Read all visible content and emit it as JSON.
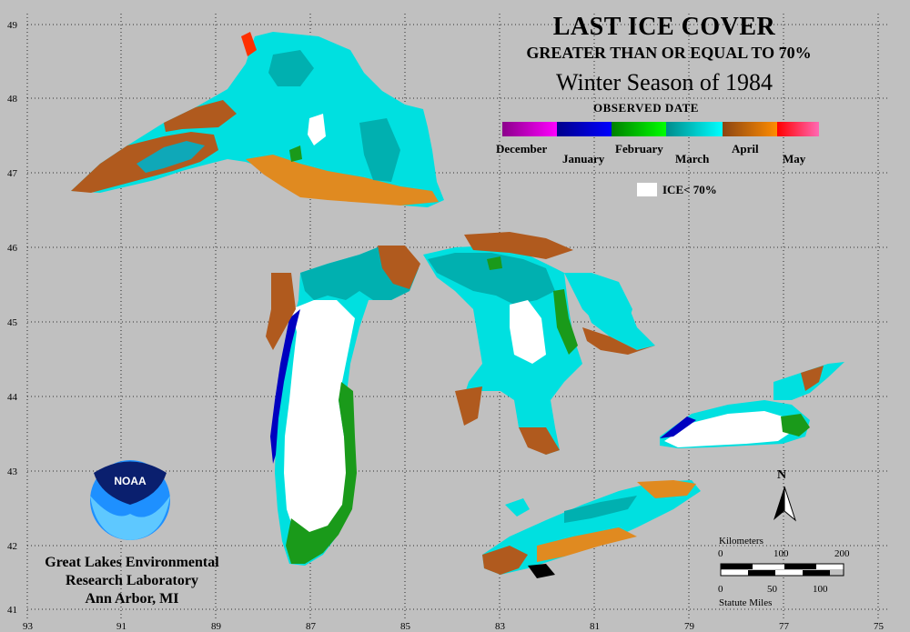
{
  "title": {
    "line1": "LAST ICE COVER",
    "line2": "GREATER THAN OR EQUAL TO 70%",
    "line3": "Winter Season of 1984"
  },
  "legend": {
    "heading": "OBSERVED DATE",
    "months": [
      {
        "label": "December",
        "colors": [
          "#8b008b",
          "#ff00ff"
        ]
      },
      {
        "label": "January",
        "colors": [
          "#00008b",
          "#0000ff"
        ]
      },
      {
        "label": "February",
        "colors": [
          "#008000",
          "#00ff00"
        ]
      },
      {
        "label": "March",
        "colors": [
          "#008b8b",
          "#00ffff"
        ]
      },
      {
        "label": "April",
        "colors": [
          "#8b4513",
          "#ff8c00"
        ]
      },
      {
        "label": "May",
        "colors": [
          "#ff0000",
          "#ff69b4"
        ]
      }
    ],
    "ice_label": "ICE< 70%"
  },
  "axes": {
    "latitude_labels": [
      "49",
      "48",
      "47",
      "46",
      "45",
      "44",
      "43",
      "42",
      "41"
    ],
    "longitude_labels": [
      "93",
      "91",
      "89",
      "87",
      "85",
      "83",
      "81",
      "79",
      "77",
      "75"
    ]
  },
  "north_label": "N",
  "scale": {
    "km_title": "Kilometers",
    "km_ticks": [
      "0",
      "100",
      "200"
    ],
    "mi_ticks": [
      "0",
      "50",
      "100"
    ],
    "mi_title": "Statute Miles"
  },
  "credit": {
    "line1": "Great Lakes Environmental",
    "line2": "Research Laboratory",
    "line3": "Ann Arbor, MI"
  },
  "logo_text": "NOAA",
  "colors": {
    "background": "#c0c0c0",
    "ice_lt_70": "#ffffff",
    "march_light": "#00e0e0",
    "march_dark": "#00b0b0",
    "april_brown": "#b05a1e",
    "april_orange": "#e08a20",
    "jan_blue": "#0000c0",
    "feb_green": "#1a9a1a"
  }
}
